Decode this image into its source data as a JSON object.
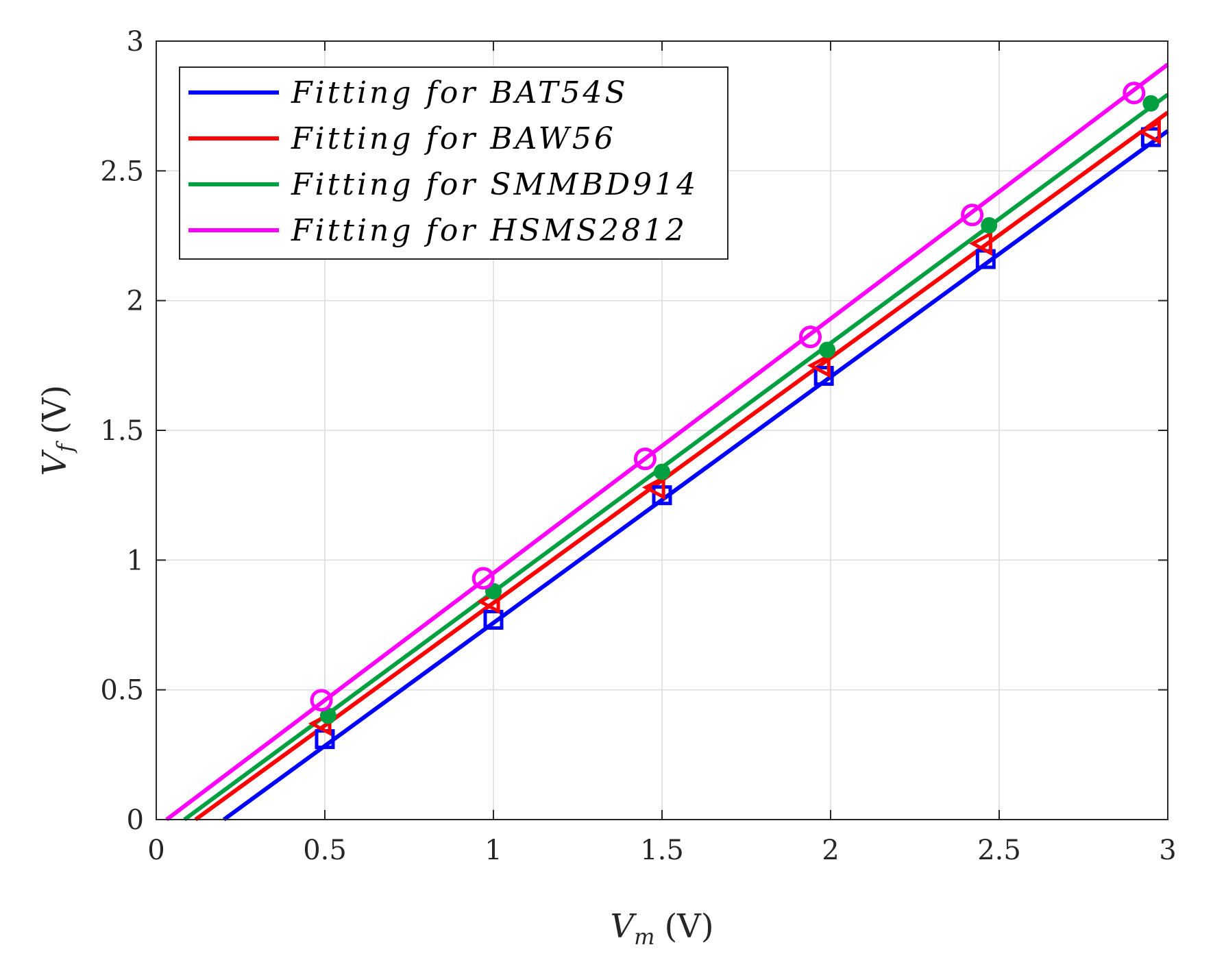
{
  "chart_data": {
    "type": "line",
    "xlabel": {
      "symbol": "V",
      "subscript": "m",
      "unit": "(V)"
    },
    "ylabel": {
      "symbol": "V",
      "subscript": "f",
      "unit": "(V)"
    },
    "xlim": [
      0,
      3
    ],
    "ylim": [
      0,
      3
    ],
    "xticks": [
      "0",
      "0.5",
      "1",
      "1.5",
      "2",
      "2.5",
      "3"
    ],
    "yticks": [
      "0",
      "0.5",
      "1",
      "1.5",
      "2",
      "2.5",
      "3"
    ],
    "grid": true,
    "legend_position": "top-left",
    "series": [
      {
        "name": "Fitting for BAT54S",
        "color": "#0000ff",
        "marker": "square",
        "fit_line": {
          "slope": 0.948,
          "intercept": -0.19
        },
        "points": {
          "x": [
            0.5,
            1.0,
            1.5,
            1.98,
            2.46,
            2.95
          ],
          "y": [
            0.31,
            0.77,
            1.25,
            1.71,
            2.16,
            2.63
          ]
        }
      },
      {
        "name": "Fitting for BAW56",
        "color": "#ff0000",
        "marker": "triangle-left",
        "fit_line": {
          "slope": 0.945,
          "intercept": -0.11
        },
        "points": {
          "x": [
            0.49,
            0.99,
            1.48,
            1.97,
            2.45,
            2.95
          ],
          "y": [
            0.37,
            0.84,
            1.28,
            1.75,
            2.22,
            2.65
          ]
        }
      },
      {
        "name": "Fitting for SMMBD914",
        "color": "#00a040",
        "marker": "dot",
        "fit_line": {
          "slope": 0.958,
          "intercept": -0.08
        },
        "points": {
          "x": [
            0.51,
            1.0,
            1.5,
            1.99,
            2.47,
            2.95
          ],
          "y": [
            0.4,
            0.88,
            1.34,
            1.81,
            2.29,
            2.76
          ]
        }
      },
      {
        "name": "Fitting for HSMS2812",
        "color": "#ff00ff",
        "marker": "circle",
        "fit_line": {
          "slope": 0.98,
          "intercept": -0.03
        },
        "points": {
          "x": [
            0.49,
            0.97,
            1.45,
            1.94,
            2.42,
            2.9
          ],
          "y": [
            0.46,
            0.93,
            1.39,
            1.86,
            2.33,
            2.8
          ]
        }
      }
    ]
  }
}
